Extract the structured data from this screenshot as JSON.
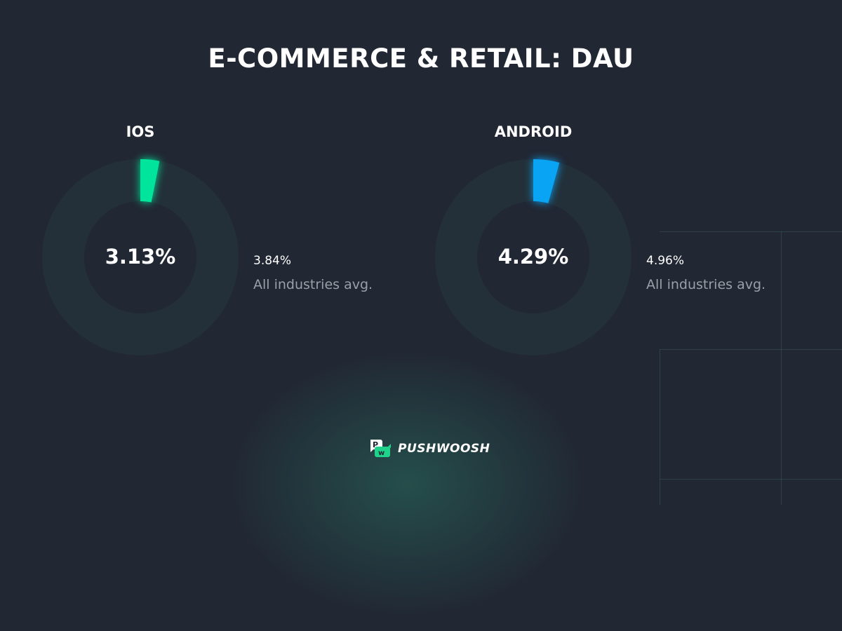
{
  "title": "E-COMMERCE & RETAIL: DAU",
  "chart_data": [
    {
      "type": "pie",
      "variant": "donut",
      "title": "IOS",
      "value_percent": 3.13,
      "label": "3.13%",
      "comparison": {
        "value": "3.84%",
        "label": "All industries avg."
      },
      "color": "#00e59b",
      "track_color": "#233039"
    },
    {
      "type": "pie",
      "variant": "donut",
      "title": "ANDROID",
      "value_percent": 4.29,
      "label": "4.29%",
      "comparison": {
        "value": "4.96%",
        "label": "All industries avg."
      },
      "color": "#0aa4f5",
      "track_color": "#233039"
    }
  ],
  "brand": {
    "name": "PUSHWOOSH",
    "icon": "pushwoosh-logo-icon",
    "color": "#1fd48a"
  }
}
